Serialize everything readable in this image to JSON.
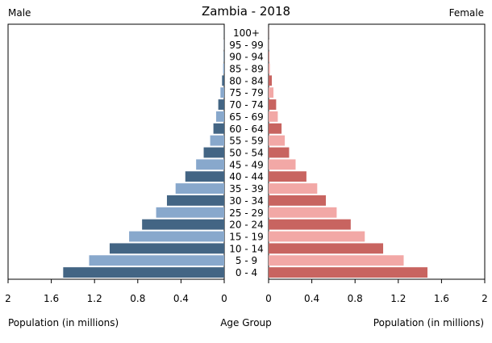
{
  "chart_data": {
    "type": "bar",
    "title": "Zambia - 2018",
    "left_header": "Male",
    "right_header": "Female",
    "xlabel_left": "Population (in millions)",
    "xlabel_right": "Population (in millions)",
    "xlabel_center": "Age Group",
    "xlim": [
      0,
      2
    ],
    "xticks_left": [
      "2",
      "1.6",
      "1.2",
      "0.8",
      "0.4",
      "0"
    ],
    "xticks_right": [
      "0",
      "0.4",
      "0.8",
      "1.2",
      "1.6",
      "2"
    ],
    "xtick_values": [
      2,
      1.6,
      1.2,
      0.8,
      0.4,
      0
    ],
    "categories": [
      "0 - 4",
      "5 - 9",
      "10 - 14",
      "15 - 19",
      "20 - 24",
      "25 - 29",
      "30 - 34",
      "35 - 39",
      "40 - 44",
      "45 - 49",
      "50 - 54",
      "55 - 59",
      "60 - 64",
      "65 - 69",
      "70 - 74",
      "75 - 79",
      "80 - 84",
      "85 - 89",
      "90 - 94",
      "95 - 99",
      "100+"
    ],
    "series": [
      {
        "side": "male",
        "values": [
          1.49,
          1.25,
          1.06,
          0.88,
          0.76,
          0.63,
          0.53,
          0.45,
          0.36,
          0.26,
          0.19,
          0.13,
          0.1,
          0.075,
          0.055,
          0.035,
          0.02,
          0.01,
          0.005,
          0.002,
          0.001
        ],
        "colors": [
          "#436584",
          "#88a8cc"
        ]
      },
      {
        "side": "female",
        "values": [
          1.47,
          1.25,
          1.06,
          0.89,
          0.76,
          0.63,
          0.53,
          0.45,
          0.35,
          0.25,
          0.19,
          0.15,
          0.12,
          0.085,
          0.07,
          0.045,
          0.03,
          0.012,
          0.006,
          0.002,
          0.001
        ],
        "colors": [
          "#c86460",
          "#f2a8a6"
        ]
      }
    ]
  }
}
